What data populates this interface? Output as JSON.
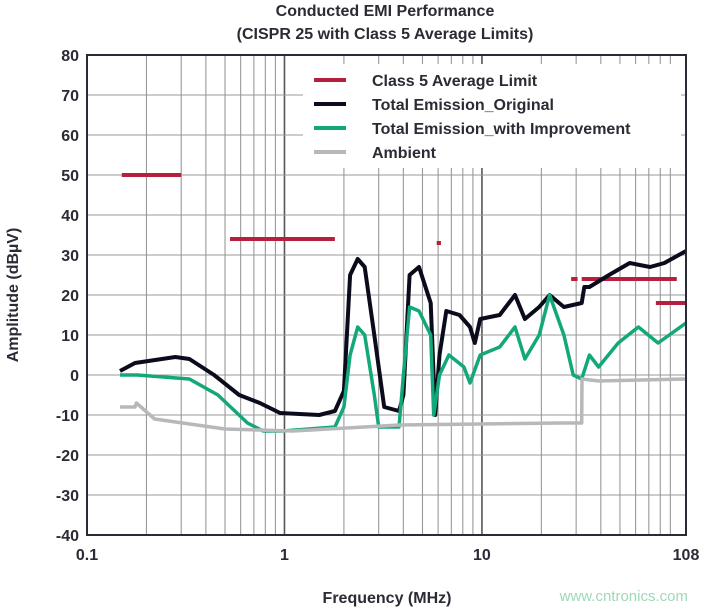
{
  "chart_data": {
    "type": "line",
    "title": "Conducted EMI Performance",
    "subtitle": "(CISPR 25 with Class 5 Average Limits)",
    "xlabel": "Frequency (MHz)",
    "ylabel": "Amplitude (dBµV)",
    "xscale": "log",
    "xlim": [
      0.1,
      108
    ],
    "ylim": [
      -40,
      80
    ],
    "xticks": [
      "0.1",
      "1",
      "10",
      "108"
    ],
    "yticks": [
      80,
      70,
      60,
      50,
      40,
      30,
      20,
      10,
      0,
      -10,
      -20,
      -30,
      -40
    ],
    "grid": true,
    "legend_position": "top-right",
    "series": [
      {
        "name": "Class 5 Average Limit",
        "color": "#b5203f",
        "kind": "segments",
        "segments": [
          [
            0.15,
            0.3,
            50
          ],
          [
            0.53,
            1.8,
            34
          ],
          [
            5.9,
            6.2,
            33
          ],
          [
            28.3,
            30.5,
            24
          ],
          [
            32,
            97,
            24
          ],
          [
            76,
            108,
            18
          ]
        ]
      },
      {
        "name": "Total Emission_Original",
        "color": "#0b0b1e",
        "points": [
          [
            0.147,
            1
          ],
          [
            0.175,
            3
          ],
          [
            0.28,
            4.5
          ],
          [
            0.33,
            4
          ],
          [
            0.44,
            0
          ],
          [
            0.59,
            -5
          ],
          [
            0.75,
            -7
          ],
          [
            0.95,
            -9.5
          ],
          [
            1.5,
            -10
          ],
          [
            1.8,
            -9
          ],
          [
            2.0,
            -4
          ],
          [
            2.15,
            25
          ],
          [
            2.35,
            29
          ],
          [
            2.55,
            27
          ],
          [
            2.85,
            10
          ],
          [
            3.2,
            -8
          ],
          [
            3.8,
            -9
          ],
          [
            4.0,
            -5
          ],
          [
            4.3,
            25
          ],
          [
            4.8,
            27
          ],
          [
            5.5,
            18
          ],
          [
            5.8,
            -10
          ],
          [
            6.1,
            5
          ],
          [
            6.6,
            16
          ],
          [
            7.7,
            15
          ],
          [
            8.7,
            12
          ],
          [
            9.2,
            8
          ],
          [
            9.8,
            14
          ],
          [
            12.3,
            15
          ],
          [
            14.7,
            20
          ],
          [
            16.5,
            14
          ],
          [
            19.5,
            17
          ],
          [
            22,
            20
          ],
          [
            26,
            17
          ],
          [
            32,
            18
          ],
          [
            33,
            22
          ],
          [
            35,
            22
          ],
          [
            44,
            25
          ],
          [
            56,
            28
          ],
          [
            71,
            27
          ],
          [
            84,
            28
          ],
          [
            108,
            31
          ]
        ]
      },
      {
        "name": "Total Emission_with Improvement",
        "color": "#13a87a",
        "points": [
          [
            0.147,
            0
          ],
          [
            0.18,
            0
          ],
          [
            0.33,
            -1
          ],
          [
            0.46,
            -5
          ],
          [
            0.65,
            -12
          ],
          [
            0.78,
            -14
          ],
          [
            0.98,
            -14
          ],
          [
            1.8,
            -13
          ],
          [
            2.0,
            -8
          ],
          [
            2.15,
            5
          ],
          [
            2.35,
            12
          ],
          [
            2.55,
            10
          ],
          [
            2.85,
            -5
          ],
          [
            3.0,
            -13
          ],
          [
            3.8,
            -13
          ],
          [
            4.0,
            0
          ],
          [
            4.3,
            17
          ],
          [
            4.8,
            16
          ],
          [
            5.5,
            10
          ],
          [
            5.7,
            -10
          ],
          [
            6.1,
            0
          ],
          [
            6.8,
            5
          ],
          [
            8.1,
            2
          ],
          [
            8.7,
            -2
          ],
          [
            9.8,
            5
          ],
          [
            12.3,
            7
          ],
          [
            14.7,
            12
          ],
          [
            16.5,
            4
          ],
          [
            19.5,
            10
          ],
          [
            22,
            20
          ],
          [
            26,
            10
          ],
          [
            29,
            0
          ],
          [
            32,
            -1
          ],
          [
            35,
            5
          ],
          [
            39,
            2
          ],
          [
            49,
            8
          ],
          [
            62,
            12
          ],
          [
            78,
            8
          ],
          [
            108,
            13
          ]
        ]
      },
      {
        "name": "Ambient",
        "color": "#b8b8bc",
        "points": [
          [
            0.147,
            -8
          ],
          [
            0.175,
            -8
          ],
          [
            0.178,
            -7
          ],
          [
            0.22,
            -11
          ],
          [
            0.5,
            -13.5
          ],
          [
            1.1,
            -14
          ],
          [
            3.8,
            -12.5
          ],
          [
            25,
            -12
          ],
          [
            32,
            -12
          ],
          [
            32.1,
            -1
          ],
          [
            39,
            -1.5
          ],
          [
            108,
            -1
          ]
        ]
      }
    ]
  },
  "watermark": "www.cntronics.com"
}
